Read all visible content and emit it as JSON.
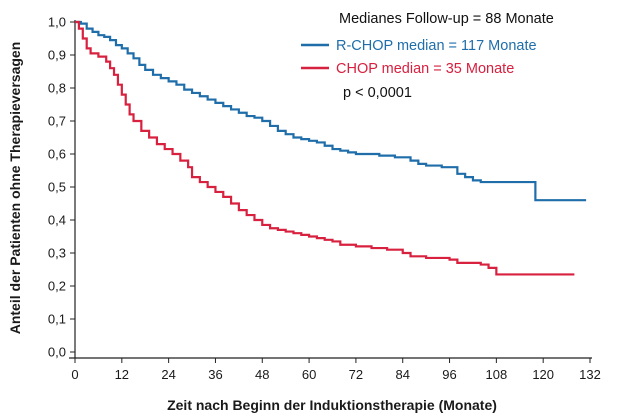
{
  "chart_data": {
    "type": "line",
    "subtype": "kaplan-meier",
    "title": "",
    "xlabel": "Zeit nach Beginn der Induktionstherapie (Monate)",
    "ylabel": "Anteil der Patienten ohne Therapieversagen",
    "xlim": [
      0,
      132
    ],
    "ylim": [
      0,
      1.0
    ],
    "x_ticks": [
      "0",
      "12",
      "24",
      "36",
      "48",
      "60",
      "72",
      "84",
      "96",
      "108",
      "120",
      "132"
    ],
    "y_ticks": [
      "0,0",
      "0,1",
      "0,2",
      "0,3",
      "0,4",
      "0,5",
      "0,6",
      "0,7",
      "0,8",
      "0,9",
      "1,0"
    ],
    "grid": false,
    "legend_position": "top-right",
    "annotations": {
      "follow_up": "Medianes Follow-up = 88 Monate",
      "p_value": "p < 0,0001"
    },
    "series": [
      {
        "name": "R-CHOP median = 117 Monate",
        "color": "#1f6eaa",
        "points": [
          [
            0,
            1.0
          ],
          [
            1.5,
            0.995
          ],
          [
            3,
            0.98
          ],
          [
            4.5,
            0.97
          ],
          [
            6,
            0.96
          ],
          [
            7.5,
            0.955
          ],
          [
            9,
            0.945
          ],
          [
            10.5,
            0.93
          ],
          [
            12,
            0.92
          ],
          [
            13.5,
            0.905
          ],
          [
            15,
            0.89
          ],
          [
            16.5,
            0.87
          ],
          [
            18,
            0.855
          ],
          [
            20,
            0.84
          ],
          [
            22,
            0.83
          ],
          [
            24,
            0.82
          ],
          [
            26,
            0.81
          ],
          [
            28,
            0.795
          ],
          [
            30,
            0.785
          ],
          [
            32,
            0.775
          ],
          [
            34,
            0.765
          ],
          [
            36,
            0.755
          ],
          [
            38,
            0.745
          ],
          [
            40,
            0.735
          ],
          [
            42,
            0.725
          ],
          [
            44,
            0.715
          ],
          [
            46,
            0.71
          ],
          [
            48,
            0.7
          ],
          [
            50,
            0.685
          ],
          [
            52,
            0.67
          ],
          [
            54,
            0.66
          ],
          [
            56,
            0.65
          ],
          [
            58,
            0.645
          ],
          [
            60,
            0.64
          ],
          [
            62,
            0.635
          ],
          [
            64,
            0.625
          ],
          [
            66,
            0.615
          ],
          [
            68,
            0.61
          ],
          [
            70,
            0.605
          ],
          [
            72,
            0.6
          ],
          [
            78,
            0.595
          ],
          [
            82,
            0.59
          ],
          [
            86,
            0.58
          ],
          [
            88,
            0.57
          ],
          [
            90,
            0.565
          ],
          [
            94,
            0.56
          ],
          [
            98,
            0.54
          ],
          [
            100,
            0.53
          ],
          [
            102,
            0.52
          ],
          [
            104,
            0.515
          ],
          [
            117,
            0.515
          ],
          [
            118,
            0.46
          ],
          [
            131,
            0.46
          ]
        ]
      },
      {
        "name": "CHOP median = 35 Monate",
        "color": "#d8203f",
        "points": [
          [
            0,
            1.0
          ],
          [
            1,
            0.98
          ],
          [
            2,
            0.95
          ],
          [
            3,
            0.92
          ],
          [
            4,
            0.905
          ],
          [
            6,
            0.895
          ],
          [
            8,
            0.88
          ],
          [
            9,
            0.86
          ],
          [
            10,
            0.84
          ],
          [
            11,
            0.81
          ],
          [
            12,
            0.78
          ],
          [
            13,
            0.75
          ],
          [
            14,
            0.72
          ],
          [
            15,
            0.7
          ],
          [
            17,
            0.67
          ],
          [
            19,
            0.65
          ],
          [
            21,
            0.63
          ],
          [
            23,
            0.615
          ],
          [
            25,
            0.6
          ],
          [
            27,
            0.58
          ],
          [
            29,
            0.56
          ],
          [
            30,
            0.53
          ],
          [
            32,
            0.515
          ],
          [
            34,
            0.5
          ],
          [
            36,
            0.485
          ],
          [
            38,
            0.47
          ],
          [
            40,
            0.45
          ],
          [
            42,
            0.43
          ],
          [
            44,
            0.415
          ],
          [
            46,
            0.4
          ],
          [
            48,
            0.385
          ],
          [
            50,
            0.375
          ],
          [
            52,
            0.37
          ],
          [
            54,
            0.365
          ],
          [
            56,
            0.36
          ],
          [
            58,
            0.355
          ],
          [
            60,
            0.35
          ],
          [
            62,
            0.345
          ],
          [
            64,
            0.34
          ],
          [
            66,
            0.335
          ],
          [
            68,
            0.325
          ],
          [
            72,
            0.32
          ],
          [
            76,
            0.315
          ],
          [
            80,
            0.31
          ],
          [
            84,
            0.3
          ],
          [
            86,
            0.29
          ],
          [
            90,
            0.285
          ],
          [
            96,
            0.28
          ],
          [
            98,
            0.27
          ],
          [
            104,
            0.265
          ],
          [
            106,
            0.255
          ],
          [
            108,
            0.235
          ],
          [
            128,
            0.235
          ]
        ]
      }
    ]
  }
}
